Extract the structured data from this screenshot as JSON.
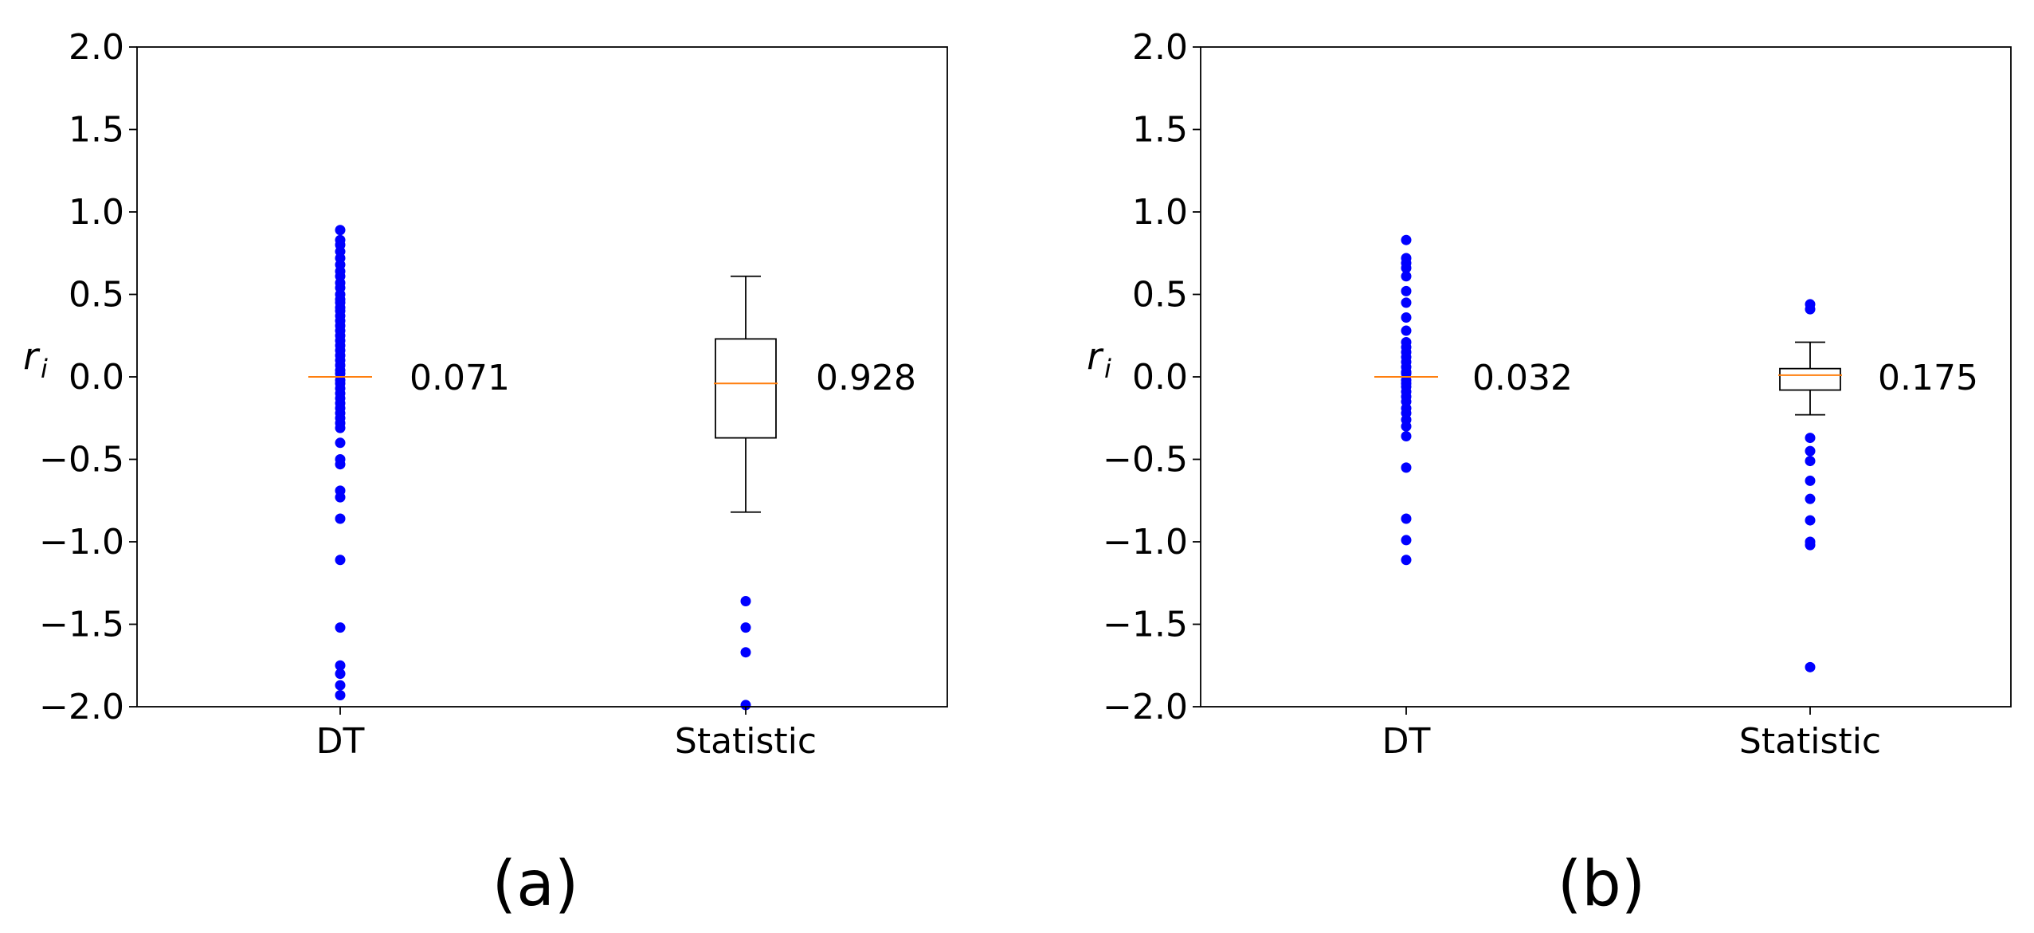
{
  "chart_data": [
    {
      "type": "box",
      "panel_label": "(a)",
      "ylabel_main": "r",
      "ylabel_sub": "i",
      "ylim": [
        -2.0,
        2.0
      ],
      "yticks": [
        -2.0,
        -1.5,
        -1.0,
        -0.5,
        0.0,
        0.5,
        1.0,
        1.5,
        2.0
      ],
      "ytick_labels": [
        "−2.0",
        "−1.5",
        "−1.0",
        "−0.5",
        "0.0",
        "0.5",
        "1.0",
        "1.5",
        "2.0"
      ],
      "categories": [
        "DT",
        "Statistic"
      ],
      "series": [
        {
          "name": "DT",
          "annotation": "0.071",
          "box": {
            "q1": 0.0,
            "median": 0.0,
            "q3": 0.0,
            "whisker_low": 0.0,
            "whisker_high": 0.0
          },
          "outliers": [
            0.89,
            0.83,
            0.8,
            0.76,
            0.72,
            0.68,
            0.64,
            0.61,
            0.57,
            0.54,
            0.5,
            0.47,
            0.45,
            0.42,
            0.4,
            0.37,
            0.34,
            0.31,
            0.28,
            0.25,
            0.22,
            0.19,
            0.16,
            0.13,
            0.1,
            0.07,
            0.04,
            0.02,
            -0.02,
            -0.04,
            -0.07,
            -0.1,
            -0.13,
            -0.16,
            -0.19,
            -0.22,
            -0.25,
            -0.28,
            -0.31,
            -0.4,
            -0.5,
            -0.53,
            -0.69,
            -0.73,
            -0.86,
            -1.11,
            -1.52,
            -1.75,
            -1.8,
            -1.87,
            -1.93
          ]
        },
        {
          "name": "Statistic",
          "annotation": "0.928",
          "box": {
            "q1": -0.37,
            "median": -0.04,
            "q3": 0.23,
            "whisker_low": -0.82,
            "whisker_high": 0.61
          },
          "outliers": [
            -1.36,
            -1.52,
            -1.67,
            -1.99
          ]
        }
      ]
    },
    {
      "type": "box",
      "panel_label": "(b)",
      "ylabel_main": "r",
      "ylabel_sub": "i",
      "ylim": [
        -2.0,
        2.0
      ],
      "yticks": [
        -2.0,
        -1.5,
        -1.0,
        -0.5,
        0.0,
        0.5,
        1.0,
        1.5,
        2.0
      ],
      "ytick_labels": [
        "−2.0",
        "−1.5",
        "−1.0",
        "−0.5",
        "0.0",
        "0.5",
        "1.0",
        "1.5",
        "2.0"
      ],
      "categories": [
        "DT",
        "Statistic"
      ],
      "series": [
        {
          "name": "DT",
          "annotation": "0.032",
          "box": {
            "q1": 0.0,
            "median": 0.0,
            "q3": 0.0,
            "whisker_low": 0.0,
            "whisker_high": 0.0
          },
          "outliers": [
            0.83,
            0.72,
            0.69,
            0.66,
            0.61,
            0.52,
            0.45,
            0.36,
            0.28,
            0.21,
            0.18,
            0.15,
            0.12,
            0.09,
            0.06,
            0.03,
            0.02,
            -0.02,
            -0.04,
            -0.06,
            -0.09,
            -0.12,
            -0.15,
            -0.19,
            -0.22,
            -0.26,
            -0.3,
            -0.36,
            -0.55,
            -0.86,
            -0.99,
            -1.11
          ]
        },
        {
          "name": "Statistic",
          "annotation": "0.175",
          "box": {
            "q1": -0.08,
            "median": 0.01,
            "q3": 0.05,
            "whisker_low": -0.23,
            "whisker_high": 0.21
          },
          "outliers": [
            0.44,
            0.41,
            -0.37,
            -0.45,
            -0.51,
            -0.63,
            -0.74,
            -0.87,
            -1.0,
            -1.02,
            -1.76
          ]
        }
      ]
    }
  ]
}
